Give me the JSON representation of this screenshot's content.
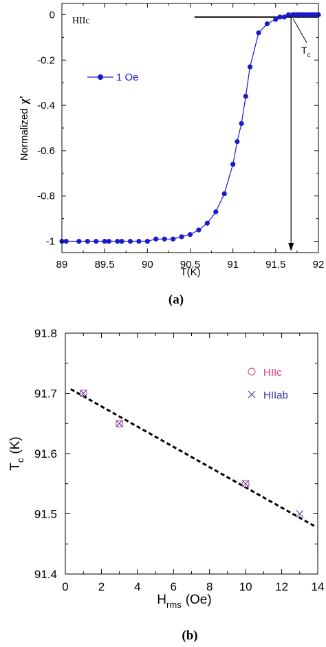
{
  "chart_data": [
    {
      "type": "line",
      "caption": "(a)",
      "annotation": "HIIc",
      "tc_label": "T",
      "tc_sub": "c",
      "xlabel": "T(K)",
      "ylabel": "Normalized",
      "ylabel_symbol": "χ'",
      "xlim": [
        89,
        92
      ],
      "ylim": [
        -1.05,
        0.05
      ],
      "xticks": [
        "89",
        "89.5",
        "90",
        "90.5",
        "91",
        "91.5",
        "92"
      ],
      "yticks": [
        "0",
        "-0.2",
        "-0.4",
        "-0.6",
        "-0.8",
        "-1"
      ],
      "legend": {
        "label": "1 Oe",
        "placement": "upper-left"
      },
      "tc_value": 91.68,
      "baseline": {
        "y": -0.01,
        "x_from": 90.55,
        "x_to": 92
      },
      "series": [
        {
          "name": "1 Oe",
          "color": "#1a1acc",
          "x": [
            89.0,
            89.05,
            89.2,
            89.3,
            89.4,
            89.5,
            89.55,
            89.65,
            89.7,
            89.8,
            89.9,
            90.0,
            90.1,
            90.2,
            90.3,
            90.4,
            90.5,
            90.6,
            90.7,
            90.8,
            90.9,
            91.0,
            91.05,
            91.1,
            91.15,
            91.2,
            91.3,
            91.4,
            91.5,
            91.55,
            91.6,
            91.65,
            91.7,
            91.72,
            91.75,
            91.78,
            91.8,
            91.83,
            91.85,
            91.88,
            91.9,
            91.93,
            91.95,
            91.98,
            92.0
          ],
          "y": [
            -1.0,
            -1.0,
            -1.0,
            -1.0,
            -1.0,
            -1.0,
            -1.0,
            -1.0,
            -1.0,
            -1.0,
            -1.0,
            -1.0,
            -0.99,
            -0.99,
            -0.99,
            -0.98,
            -0.97,
            -0.95,
            -0.92,
            -0.87,
            -0.79,
            -0.66,
            -0.56,
            -0.48,
            -0.36,
            -0.23,
            -0.08,
            -0.04,
            -0.02,
            -0.01,
            -0.01,
            0.0,
            0.0,
            0.0,
            0.0,
            0.0,
            0.0,
            0.0,
            0.0,
            0.0,
            0.0,
            0.0,
            0.0,
            0.0,
            0.0
          ]
        }
      ]
    },
    {
      "type": "scatter",
      "caption": "(b)",
      "xlabel": "H",
      "xlabel_sub": "rms",
      "xlabel_unit": "(Oe)",
      "ylabel": "T",
      "ylabel_sub": "c",
      "ylabel_unit": "(K)",
      "xlim": [
        0,
        14
      ],
      "ylim": [
        91.4,
        91.8
      ],
      "xticks": [
        "0",
        "2",
        "4",
        "6",
        "8",
        "10",
        "12",
        "14"
      ],
      "yticks": [
        "91.8",
        "91.7",
        "91.6",
        "91.5",
        "91.4"
      ],
      "legend": {
        "placement": "upper-right"
      },
      "fit": {
        "style": "dashed",
        "x": [
          0.3,
          13.8
        ],
        "y": [
          91.707,
          91.48
        ]
      },
      "series": [
        {
          "name": "HIIc",
          "marker": "circle",
          "color": "#dd3377",
          "x": [
            1,
            3,
            10
          ],
          "y": [
            91.7,
            91.65,
            91.55
          ]
        },
        {
          "name": "HIIab",
          "marker": "x",
          "color": "#3333aa",
          "x": [
            1,
            3,
            10,
            13
          ],
          "y": [
            91.7,
            91.65,
            91.55,
            91.5
          ]
        }
      ]
    }
  ]
}
